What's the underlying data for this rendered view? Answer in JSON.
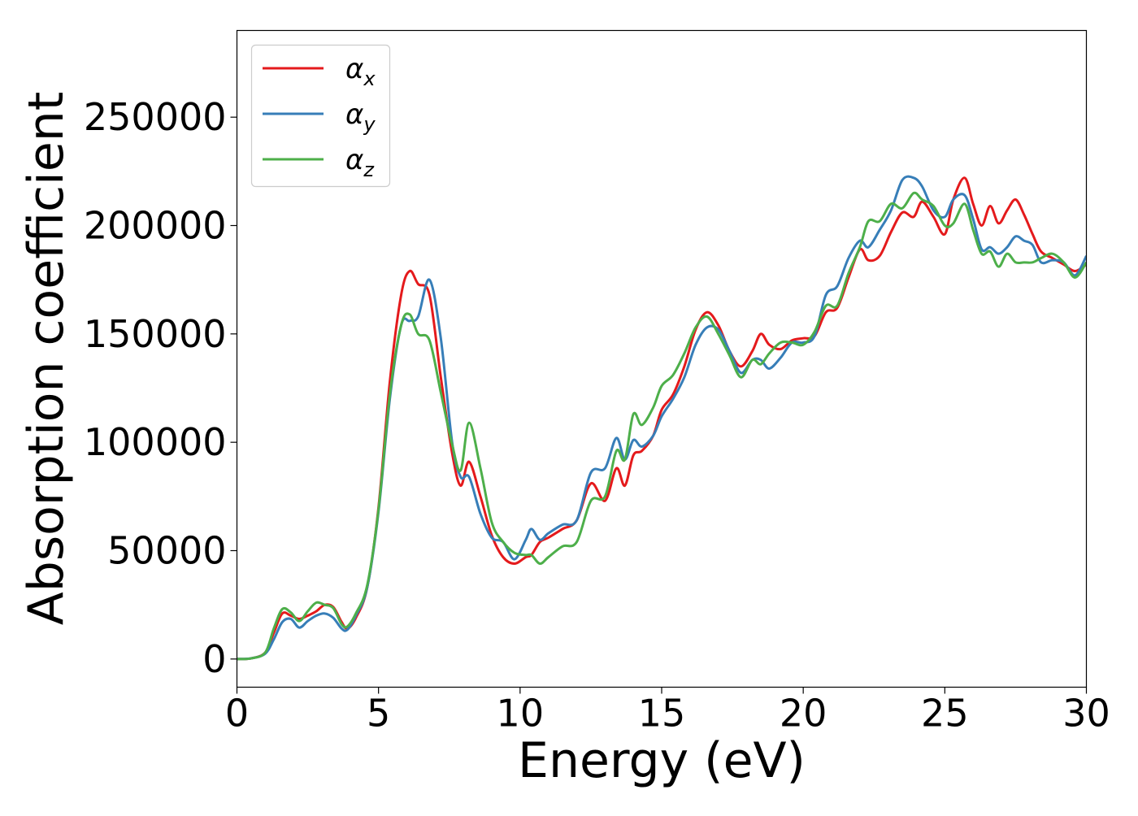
{
  "chart_data": {
    "type": "line",
    "title": "",
    "xlabel": "Energy (eV)",
    "ylabel": "Absorption coefficient",
    "xlim": [
      0,
      30
    ],
    "ylim": [
      -13000,
      290000
    ],
    "xticks": [
      0,
      5,
      10,
      15,
      20,
      25,
      30
    ],
    "xtick_labels": [
      "0",
      "5",
      "10",
      "15",
      "20",
      "25",
      "30"
    ],
    "yticks": [
      0,
      50000,
      100000,
      150000,
      200000,
      250000
    ],
    "ytick_labels": [
      "0",
      "50000",
      "100000",
      "150000",
      "200000",
      "250000"
    ],
    "grid": false,
    "legend_position": "top-left",
    "x": [
      0,
      0.5,
      1,
      1.3,
      1.6,
      1.9,
      2.2,
      2.5,
      2.8,
      3.1,
      3.4,
      3.7,
      3.9,
      4.2,
      4.6,
      5,
      5.4,
      5.8,
      6.1,
      6.4,
      6.8,
      7.2,
      7.6,
      7.9,
      8.2,
      8.6,
      9,
      9.4,
      9.8,
      10.2,
      10.4,
      10.7,
      11,
      11.5,
      12,
      12.5,
      13,
      13.4,
      13.7,
      14,
      14.3,
      14.7,
      15,
      15.4,
      15.8,
      16.2,
      16.6,
      17,
      17.4,
      17.8,
      18.2,
      18.5,
      18.8,
      19.2,
      19.6,
      20,
      20.4,
      20.8,
      21.2,
      21.6,
      22,
      22.3,
      22.7,
      23.1,
      23.5,
      23.9,
      24.2,
      24.6,
      25,
      25.3,
      25.7,
      26,
      26.3,
      26.6,
      26.9,
      27.2,
      27.5,
      27.8,
      28.1,
      28.4,
      28.8,
      29.2,
      29.6,
      30
    ],
    "series": [
      {
        "name": "αx",
        "label_main": "α",
        "label_sub": "x",
        "color": "#e41a1c",
        "values": [
          0,
          300,
          3000,
          12000,
          21000,
          20000,
          18500,
          20000,
          22000,
          25000,
          24000,
          17000,
          14000,
          19000,
          33000,
          70000,
          128000,
          168000,
          179000,
          173000,
          168000,
          130000,
          95000,
          80000,
          91000,
          75000,
          57000,
          47000,
          44000,
          47000,
          48000,
          54000,
          56000,
          60000,
          64000,
          81000,
          73000,
          88000,
          80000,
          94000,
          96000,
          103000,
          115000,
          122000,
          135000,
          152000,
          160000,
          154000,
          142000,
          135000,
          142000,
          150000,
          145000,
          143000,
          147000,
          148000,
          149000,
          160000,
          162000,
          176000,
          189000,
          184000,
          186000,
          197000,
          206000,
          204000,
          211000,
          204000,
          196000,
          212000,
          222000,
          210000,
          200000,
          209000,
          201000,
          207000,
          212000,
          205000,
          196000,
          188000,
          185000,
          182000,
          179000,
          182000
        ]
      },
      {
        "name": "αy",
        "label_main": "α",
        "label_sub": "y",
        "color": "#377eb8",
        "values": [
          0,
          300,
          2500,
          9000,
          17000,
          18500,
          14500,
          17500,
          20000,
          21000,
          19000,
          14000,
          13500,
          20000,
          33000,
          68000,
          120000,
          154000,
          156000,
          158000,
          175000,
          148000,
          100000,
          84000,
          84000,
          67000,
          56000,
          54000,
          46000,
          55000,
          60000,
          55000,
          58000,
          62000,
          64000,
          86000,
          88000,
          102000,
          92000,
          101000,
          98000,
          103000,
          112000,
          120000,
          130000,
          145000,
          153000,
          152000,
          142000,
          132000,
          138000,
          138000,
          134000,
          139000,
          146000,
          146000,
          149000,
          168000,
          172000,
          185000,
          193000,
          190000,
          198000,
          207000,
          221000,
          222000,
          218000,
          207000,
          204000,
          212000,
          214000,
          203000,
          189000,
          190000,
          187000,
          190000,
          195000,
          193000,
          191000,
          183000,
          184000,
          183000,
          177000,
          186000
        ]
      },
      {
        "name": "αz",
        "label_main": "α",
        "label_sub": "z",
        "color": "#4daf4a",
        "values": [
          0,
          300,
          3000,
          14000,
          23000,
          21500,
          17500,
          22000,
          26000,
          25000,
          23500,
          16000,
          15000,
          21000,
          34000,
          69000,
          122000,
          154000,
          159000,
          150000,
          147000,
          123000,
          99000,
          87000,
          109000,
          88000,
          63000,
          54000,
          49000,
          48000,
          48000,
          44000,
          47000,
          52000,
          54000,
          73000,
          75000,
          96000,
          92000,
          113000,
          108000,
          116000,
          126000,
          131000,
          141000,
          153000,
          158000,
          150000,
          140000,
          130000,
          138000,
          136000,
          141000,
          146000,
          146000,
          145000,
          151000,
          163000,
          163000,
          178000,
          190000,
          202000,
          202000,
          210000,
          208000,
          215000,
          212000,
          209000,
          200000,
          201000,
          210000,
          198000,
          187000,
          188000,
          181000,
          187000,
          183000,
          183000,
          183000,
          185000,
          187000,
          183000,
          176000,
          183000
        ]
      }
    ]
  }
}
